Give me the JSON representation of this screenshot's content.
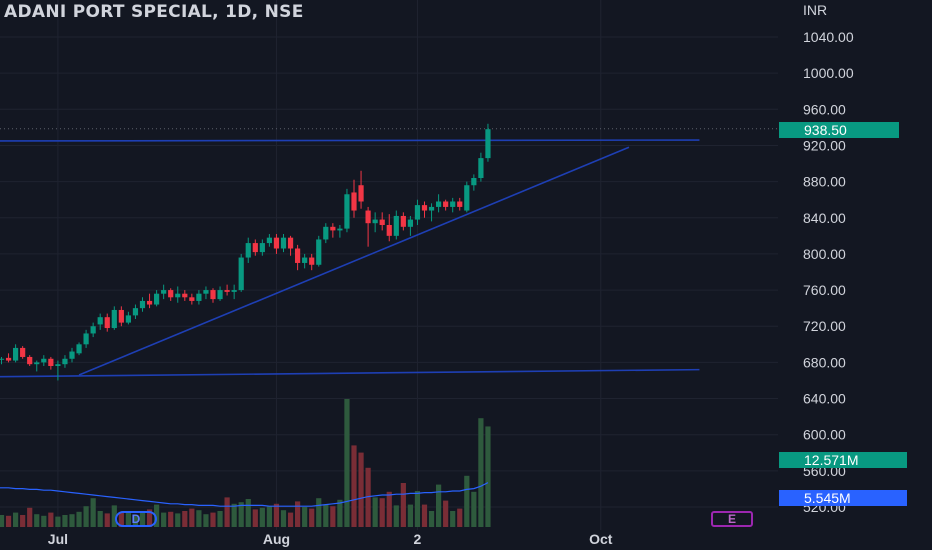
{
  "header": {
    "symbol_title": "ADANI PORT SPECIAL, 1D, NSE",
    "currency": "INR"
  },
  "badges": {
    "last_price": "938.50",
    "volume": "12.571M",
    "volume_ma": "5.545M"
  },
  "markers": {
    "dividend": "D",
    "earnings": "E"
  },
  "colors": {
    "background": "#131722",
    "up": "#089981",
    "down": "#f23645",
    "vol_up": "#2e5a3d",
    "vol_down": "#7a2d36",
    "trendline": "#1e3fb4",
    "volume_ma": "#2962ff",
    "grid": "#1f2330"
  },
  "chart_data": {
    "type": "candlestick",
    "title": "ADANI PORT SPECIAL, 1D, NSE",
    "y_axis": {
      "currency": "INR",
      "ticks": [
        1040,
        1000,
        960,
        920,
        880,
        840,
        800,
        760,
        720,
        680,
        640,
        600,
        560,
        520
      ],
      "tick_labels": [
        "1040.00",
        "1000.00",
        "960.00",
        "920.00",
        "880.00",
        "840.00",
        "800.00",
        "760.00",
        "720.00",
        "680.00",
        "640.00",
        "600.00",
        "560.00",
        "520.00"
      ],
      "range": [
        506,
        1070
      ]
    },
    "x_axis": {
      "tick_labels": [
        "Jul",
        "Aug",
        "2",
        "Oct"
      ],
      "tick_bar_index": [
        8,
        39,
        59,
        85
      ]
    },
    "last_price": 938.5,
    "ohlc": [
      [
        683,
        686,
        678,
        684
      ],
      [
        685,
        690,
        680,
        682
      ],
      [
        682,
        700,
        680,
        696
      ],
      [
        696,
        698,
        684,
        686
      ],
      [
        686,
        688,
        676,
        678
      ],
      [
        678,
        682,
        670,
        680
      ],
      [
        680,
        688,
        676,
        684
      ],
      [
        684,
        686,
        672,
        676
      ],
      [
        676,
        682,
        660,
        678
      ],
      [
        678,
        688,
        674,
        684
      ],
      [
        684,
        696,
        680,
        692
      ],
      [
        690,
        702,
        688,
        700
      ],
      [
        700,
        716,
        696,
        712
      ],
      [
        712,
        724,
        708,
        720
      ],
      [
        722,
        734,
        716,
        730
      ],
      [
        730,
        734,
        714,
        718
      ],
      [
        718,
        742,
        716,
        738
      ],
      [
        738,
        742,
        720,
        724
      ],
      [
        724,
        736,
        722,
        732
      ],
      [
        732,
        744,
        728,
        740
      ],
      [
        740,
        752,
        736,
        748
      ],
      [
        748,
        756,
        740,
        744
      ],
      [
        744,
        760,
        742,
        756
      ],
      [
        756,
        766,
        750,
        760
      ],
      [
        760,
        762,
        748,
        752
      ],
      [
        752,
        764,
        746,
        756
      ],
      [
        756,
        760,
        748,
        752
      ],
      [
        752,
        756,
        744,
        748
      ],
      [
        748,
        760,
        744,
        756
      ],
      [
        756,
        764,
        750,
        760
      ],
      [
        760,
        762,
        746,
        750
      ],
      [
        750,
        764,
        748,
        760
      ],
      [
        760,
        766,
        754,
        758
      ],
      [
        758,
        766,
        750,
        760
      ],
      [
        760,
        800,
        758,
        796
      ],
      [
        796,
        818,
        790,
        812
      ],
      [
        812,
        816,
        798,
        802
      ],
      [
        802,
        816,
        798,
        812
      ],
      [
        812,
        822,
        808,
        818
      ],
      [
        818,
        822,
        800,
        806
      ],
      [
        806,
        822,
        802,
        818
      ],
      [
        818,
        820,
        798,
        806
      ],
      [
        806,
        810,
        782,
        790
      ],
      [
        790,
        800,
        784,
        796
      ],
      [
        796,
        800,
        782,
        788
      ],
      [
        788,
        820,
        786,
        816
      ],
      [
        816,
        834,
        812,
        830
      ],
      [
        830,
        834,
        818,
        826
      ],
      [
        826,
        832,
        818,
        828
      ],
      [
        828,
        872,
        824,
        866
      ],
      [
        868,
        882,
        840,
        848
      ],
      [
        876,
        892,
        850,
        858
      ],
      [
        848,
        852,
        808,
        834
      ],
      [
        834,
        846,
        824,
        838
      ],
      [
        838,
        846,
        826,
        832
      ],
      [
        832,
        844,
        814,
        820
      ],
      [
        820,
        848,
        816,
        842
      ],
      [
        842,
        846,
        826,
        830
      ],
      [
        830,
        842,
        820,
        838
      ],
      [
        838,
        860,
        832,
        854
      ],
      [
        854,
        858,
        840,
        848
      ],
      [
        848,
        856,
        836,
        852
      ],
      [
        852,
        866,
        846,
        858
      ],
      [
        858,
        860,
        848,
        852
      ],
      [
        852,
        862,
        846,
        858
      ],
      [
        858,
        862,
        848,
        852
      ],
      [
        848,
        880,
        846,
        876
      ],
      [
        876,
        888,
        870,
        884
      ],
      [
        884,
        912,
        880,
        906
      ],
      [
        906,
        944,
        902,
        938
      ]
    ],
    "volume_m": [
      1.5,
      1.4,
      1.8,
      1.5,
      2.4,
      1.6,
      1.4,
      1.8,
      1.3,
      1.5,
      1.6,
      1.9,
      2.6,
      3.6,
      2.0,
      1.7,
      2.7,
      1.8,
      1.8,
      1.5,
      1.9,
      2.2,
      2.8,
      1.8,
      1.9,
      1.7,
      2.0,
      2.3,
      2.1,
      1.6,
      1.8,
      2.0,
      3.7,
      2.9,
      3.1,
      3.5,
      2.2,
      2.4,
      2.6,
      2.9,
      2.1,
      1.8,
      3.2,
      2.5,
      2.3,
      3.6,
      2.8,
      2.6,
      3.4,
      16.0,
      10.2,
      9.3,
      7.4,
      3.7,
      3.6,
      4.4,
      2.7,
      5.5,
      2.8,
      4.5,
      2.8,
      2.0,
      5.3,
      3.3,
      2.0,
      2.3,
      6.4,
      4.4,
      13.6,
      12.571
    ],
    "volume_ma_m": [
      4.9,
      4.9,
      4.8,
      4.8,
      4.7,
      4.7,
      4.6,
      4.6,
      4.5,
      4.4,
      4.3,
      4.2,
      4.1,
      4.0,
      3.9,
      3.8,
      3.7,
      3.6,
      3.5,
      3.4,
      3.3,
      3.2,
      3.1,
      3.0,
      2.9,
      2.9,
      2.8,
      2.8,
      2.7,
      2.7,
      2.7,
      2.6,
      2.6,
      2.6,
      2.7,
      2.7,
      2.7,
      2.7,
      2.6,
      2.6,
      2.6,
      2.6,
      2.6,
      2.6,
      2.6,
      2.7,
      2.8,
      2.9,
      3.0,
      3.2,
      3.4,
      3.6,
      3.8,
      3.9,
      4.0,
      4.0,
      4.1,
      4.1,
      4.2,
      4.2,
      4.3,
      4.3,
      4.4,
      4.4,
      4.5,
      4.5,
      4.7,
      4.8,
      5.1,
      5.545
    ],
    "trendlines": [
      {
        "name": "resistance",
        "bar_start": -2,
        "bar_end": 99,
        "y_start": 925,
        "y_end": 926
      },
      {
        "name": "support",
        "bar_start": -2,
        "bar_end": 99,
        "y_start": 664,
        "y_end": 672
      },
      {
        "name": "rising",
        "bar_start": 11,
        "bar_end": 89,
        "y_start": 666,
        "y_end": 918
      }
    ],
    "grid": true
  }
}
